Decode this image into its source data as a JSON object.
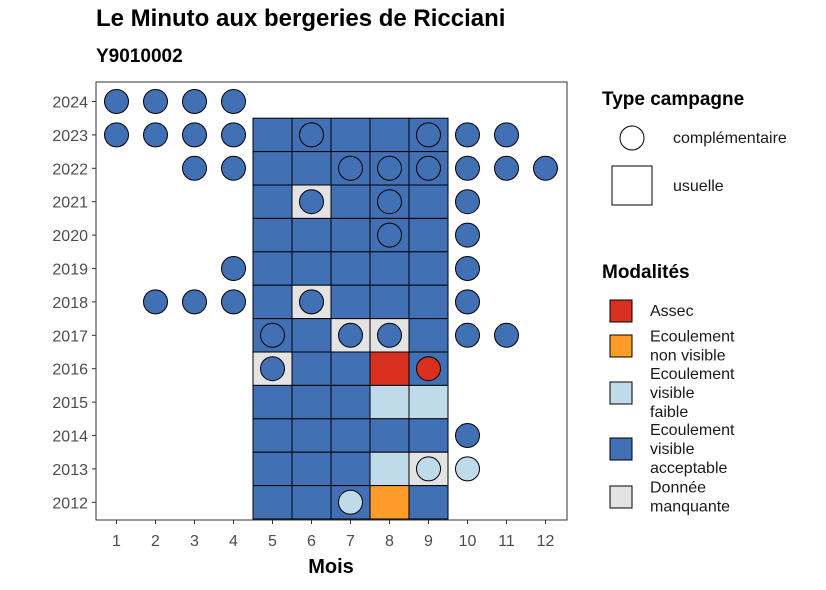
{
  "chart_data": {
    "type": "heatmap",
    "title": "Le Minuto aux bergeries de Ricciani",
    "subtitle": "Y9010002",
    "xlabel": "Mois",
    "ylabel": "",
    "x_ticks": [
      1,
      2,
      3,
      4,
      5,
      6,
      7,
      8,
      9,
      10,
      11,
      12
    ],
    "y_ticks": [
      2012,
      2013,
      2014,
      2015,
      2016,
      2017,
      2018,
      2019,
      2020,
      2021,
      2022,
      2023,
      2024
    ],
    "grid": false,
    "modalities": [
      {
        "key": "assec",
        "label": "Assec",
        "color": "#d7301f"
      },
      {
        "key": "nonvisible",
        "label": "Ecoulement non visible",
        "color": "#fd9b2b"
      },
      {
        "key": "faible",
        "label": "Ecoulement visible faible",
        "color": "#bfdbe9"
      },
      {
        "key": "acceptable",
        "label": "Ecoulement visible acceptable",
        "color": "#4270b4"
      },
      {
        "key": "manquante",
        "label": "Donnée manquante",
        "color": "#e3e3e3"
      }
    ],
    "campaign_types": [
      {
        "key": "complementaire",
        "label": "complémentaire",
        "shape": "circle"
      },
      {
        "key": "usuelle",
        "label": "usuelle",
        "shape": "square"
      }
    ],
    "legend": {
      "campaign_title": "Type campagne",
      "modalities_title": "Modalités",
      "position": "right"
    },
    "usuelle": [
      {
        "year": 2023,
        "month": 5,
        "value": "acceptable"
      },
      {
        "year": 2023,
        "month": 6,
        "value": "acceptable"
      },
      {
        "year": 2023,
        "month": 7,
        "value": "acceptable"
      },
      {
        "year": 2023,
        "month": 8,
        "value": "acceptable"
      },
      {
        "year": 2023,
        "month": 9,
        "value": "acceptable"
      },
      {
        "year": 2022,
        "month": 5,
        "value": "acceptable"
      },
      {
        "year": 2022,
        "month": 6,
        "value": "acceptable"
      },
      {
        "year": 2022,
        "month": 7,
        "value": "acceptable"
      },
      {
        "year": 2022,
        "month": 8,
        "value": "acceptable"
      },
      {
        "year": 2022,
        "month": 9,
        "value": "acceptable"
      },
      {
        "year": 2021,
        "month": 5,
        "value": "acceptable"
      },
      {
        "year": 2021,
        "month": 6,
        "value": "manquante"
      },
      {
        "year": 2021,
        "month": 7,
        "value": "acceptable"
      },
      {
        "year": 2021,
        "month": 8,
        "value": "acceptable"
      },
      {
        "year": 2021,
        "month": 9,
        "value": "acceptable"
      },
      {
        "year": 2020,
        "month": 5,
        "value": "acceptable"
      },
      {
        "year": 2020,
        "month": 6,
        "value": "acceptable"
      },
      {
        "year": 2020,
        "month": 7,
        "value": "acceptable"
      },
      {
        "year": 2020,
        "month": 8,
        "value": "acceptable"
      },
      {
        "year": 2020,
        "month": 9,
        "value": "acceptable"
      },
      {
        "year": 2019,
        "month": 5,
        "value": "acceptable"
      },
      {
        "year": 2019,
        "month": 6,
        "value": "acceptable"
      },
      {
        "year": 2019,
        "month": 7,
        "value": "acceptable"
      },
      {
        "year": 2019,
        "month": 8,
        "value": "acceptable"
      },
      {
        "year": 2019,
        "month": 9,
        "value": "acceptable"
      },
      {
        "year": 2018,
        "month": 5,
        "value": "acceptable"
      },
      {
        "year": 2018,
        "month": 6,
        "value": "manquante"
      },
      {
        "year": 2018,
        "month": 7,
        "value": "acceptable"
      },
      {
        "year": 2018,
        "month": 8,
        "value": "acceptable"
      },
      {
        "year": 2018,
        "month": 9,
        "value": "acceptable"
      },
      {
        "year": 2017,
        "month": 5,
        "value": "acceptable"
      },
      {
        "year": 2017,
        "month": 6,
        "value": "acceptable"
      },
      {
        "year": 2017,
        "month": 7,
        "value": "manquante"
      },
      {
        "year": 2017,
        "month": 8,
        "value": "manquante"
      },
      {
        "year": 2017,
        "month": 9,
        "value": "acceptable"
      },
      {
        "year": 2016,
        "month": 5,
        "value": "manquante"
      },
      {
        "year": 2016,
        "month": 6,
        "value": "acceptable"
      },
      {
        "year": 2016,
        "month": 7,
        "value": "acceptable"
      },
      {
        "year": 2016,
        "month": 8,
        "value": "assec"
      },
      {
        "year": 2016,
        "month": 9,
        "value": "acceptable"
      },
      {
        "year": 2015,
        "month": 5,
        "value": "acceptable"
      },
      {
        "year": 2015,
        "month": 6,
        "value": "acceptable"
      },
      {
        "year": 2015,
        "month": 7,
        "value": "acceptable"
      },
      {
        "year": 2015,
        "month": 8,
        "value": "faible"
      },
      {
        "year": 2015,
        "month": 9,
        "value": "faible"
      },
      {
        "year": 2014,
        "month": 5,
        "value": "acceptable"
      },
      {
        "year": 2014,
        "month": 6,
        "value": "acceptable"
      },
      {
        "year": 2014,
        "month": 7,
        "value": "acceptable"
      },
      {
        "year": 2014,
        "month": 8,
        "value": "acceptable"
      },
      {
        "year": 2014,
        "month": 9,
        "value": "acceptable"
      },
      {
        "year": 2013,
        "month": 5,
        "value": "acceptable"
      },
      {
        "year": 2013,
        "month": 6,
        "value": "acceptable"
      },
      {
        "year": 2013,
        "month": 7,
        "value": "acceptable"
      },
      {
        "year": 2013,
        "month": 8,
        "value": "faible"
      },
      {
        "year": 2013,
        "month": 9,
        "value": "manquante"
      },
      {
        "year": 2012,
        "month": 5,
        "value": "acceptable"
      },
      {
        "year": 2012,
        "month": 6,
        "value": "acceptable"
      },
      {
        "year": 2012,
        "month": 7,
        "value": "acceptable"
      },
      {
        "year": 2012,
        "month": 8,
        "value": "nonvisible"
      },
      {
        "year": 2012,
        "month": 9,
        "value": "acceptable"
      }
    ],
    "complementaire": [
      {
        "year": 2024,
        "month": 1,
        "value": "acceptable"
      },
      {
        "year": 2024,
        "month": 2,
        "value": "acceptable"
      },
      {
        "year": 2024,
        "month": 3,
        "value": "acceptable"
      },
      {
        "year": 2024,
        "month": 4,
        "value": "acceptable"
      },
      {
        "year": 2023,
        "month": 1,
        "value": "acceptable"
      },
      {
        "year": 2023,
        "month": 2,
        "value": "acceptable"
      },
      {
        "year": 2023,
        "month": 3,
        "value": "acceptable"
      },
      {
        "year": 2023,
        "month": 4,
        "value": "acceptable"
      },
      {
        "year": 2023,
        "month": 6,
        "value": "acceptable"
      },
      {
        "year": 2023,
        "month": 9,
        "value": "acceptable"
      },
      {
        "year": 2023,
        "month": 10,
        "value": "acceptable"
      },
      {
        "year": 2023,
        "month": 11,
        "value": "acceptable"
      },
      {
        "year": 2022,
        "month": 3,
        "value": "acceptable"
      },
      {
        "year": 2022,
        "month": 4,
        "value": "acceptable"
      },
      {
        "year": 2022,
        "month": 7,
        "value": "acceptable"
      },
      {
        "year": 2022,
        "month": 8,
        "value": "acceptable"
      },
      {
        "year": 2022,
        "month": 9,
        "value": "acceptable"
      },
      {
        "year": 2022,
        "month": 10,
        "value": "acceptable"
      },
      {
        "year": 2022,
        "month": 11,
        "value": "acceptable"
      },
      {
        "year": 2022,
        "month": 12,
        "value": "acceptable"
      },
      {
        "year": 2021,
        "month": 6,
        "value": "acceptable"
      },
      {
        "year": 2021,
        "month": 8,
        "value": "acceptable"
      },
      {
        "year": 2021,
        "month": 10,
        "value": "acceptable"
      },
      {
        "year": 2020,
        "month": 8,
        "value": "acceptable"
      },
      {
        "year": 2020,
        "month": 10,
        "value": "acceptable"
      },
      {
        "year": 2019,
        "month": 4,
        "value": "acceptable"
      },
      {
        "year": 2019,
        "month": 10,
        "value": "acceptable"
      },
      {
        "year": 2018,
        "month": 2,
        "value": "acceptable"
      },
      {
        "year": 2018,
        "month": 3,
        "value": "acceptable"
      },
      {
        "year": 2018,
        "month": 4,
        "value": "acceptable"
      },
      {
        "year": 2018,
        "month": 6,
        "value": "acceptable"
      },
      {
        "year": 2018,
        "month": 10,
        "value": "acceptable"
      },
      {
        "year": 2017,
        "month": 5,
        "value": "acceptable"
      },
      {
        "year": 2017,
        "month": 7,
        "value": "acceptable"
      },
      {
        "year": 2017,
        "month": 8,
        "value": "acceptable"
      },
      {
        "year": 2017,
        "month": 10,
        "value": "acceptable"
      },
      {
        "year": 2017,
        "month": 11,
        "value": "acceptable"
      },
      {
        "year": 2016,
        "month": 5,
        "value": "acceptable"
      },
      {
        "year": 2016,
        "month": 9,
        "value": "assec"
      },
      {
        "year": 2014,
        "month": 10,
        "value": "acceptable"
      },
      {
        "year": 2013,
        "month": 9,
        "value": "faible"
      },
      {
        "year": 2013,
        "month": 10,
        "value": "faible"
      },
      {
        "year": 2012,
        "month": 7,
        "value": "faible"
      }
    ]
  }
}
